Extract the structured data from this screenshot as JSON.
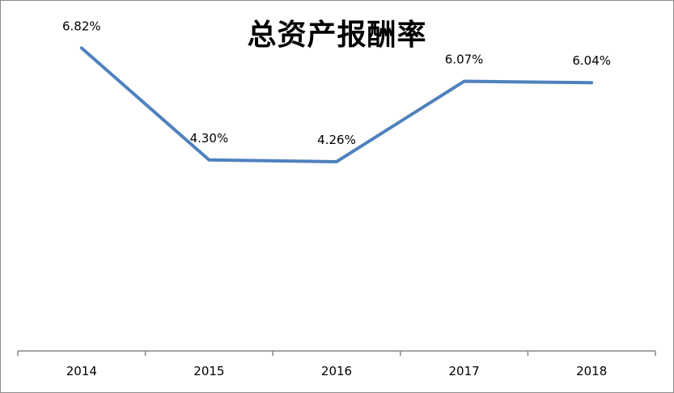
{
  "chart_data": {
    "type": "line",
    "title": "总资产报酬率",
    "categories": [
      "2014",
      "2015",
      "2016",
      "2017",
      "2018"
    ],
    "values": [
      6.82,
      4.3,
      4.26,
      6.07,
      6.04
    ],
    "data_labels": [
      "6.82%",
      "4.30%",
      "4.26%",
      "6.07%",
      "6.04%"
    ],
    "xlabel": "",
    "ylabel": "",
    "ylim": [
      0,
      7.5
    ],
    "grid": false,
    "legend": "none",
    "line_color": "#4f81bd",
    "axis_color": "#868686"
  }
}
